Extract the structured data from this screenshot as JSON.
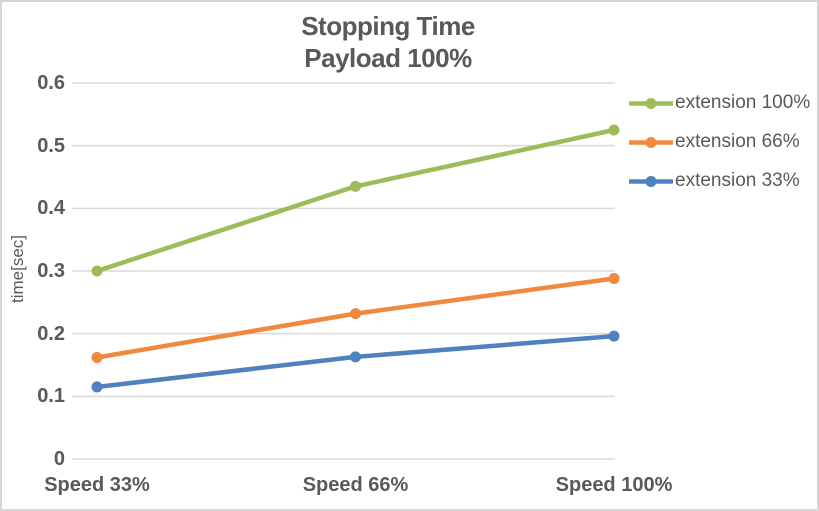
{
  "chart_data": {
    "type": "line",
    "title": "Stopping Time",
    "subtitle": "Payload 100%",
    "ylabel": "time[sec]",
    "xlabel": "",
    "categories": [
      "Speed 33%",
      "Speed 66%",
      "Speed 100%"
    ],
    "series": [
      {
        "name": "extension 100%",
        "color": "#9CBB59",
        "values": [
          0.3,
          0.435,
          0.525
        ]
      },
      {
        "name": "extension 66%",
        "color": "#F0883E",
        "values": [
          0.162,
          0.232,
          0.288
        ]
      },
      {
        "name": "extension 33%",
        "color": "#4E81BD",
        "values": [
          0.115,
          0.163,
          0.196
        ]
      }
    ],
    "ylim": [
      0,
      0.6
    ],
    "ytick_step": 0.1,
    "ytick_labels": [
      "0",
      "0.1",
      "0.2",
      "0.3",
      "0.4",
      "0.5",
      "0.6"
    ],
    "grid": true,
    "legend_position": "right",
    "marker": "circle"
  },
  "colors": {
    "grid": "#D9D9D9",
    "text": "#595959",
    "border": "#D6D6D6",
    "background": "#FFFFFF"
  }
}
